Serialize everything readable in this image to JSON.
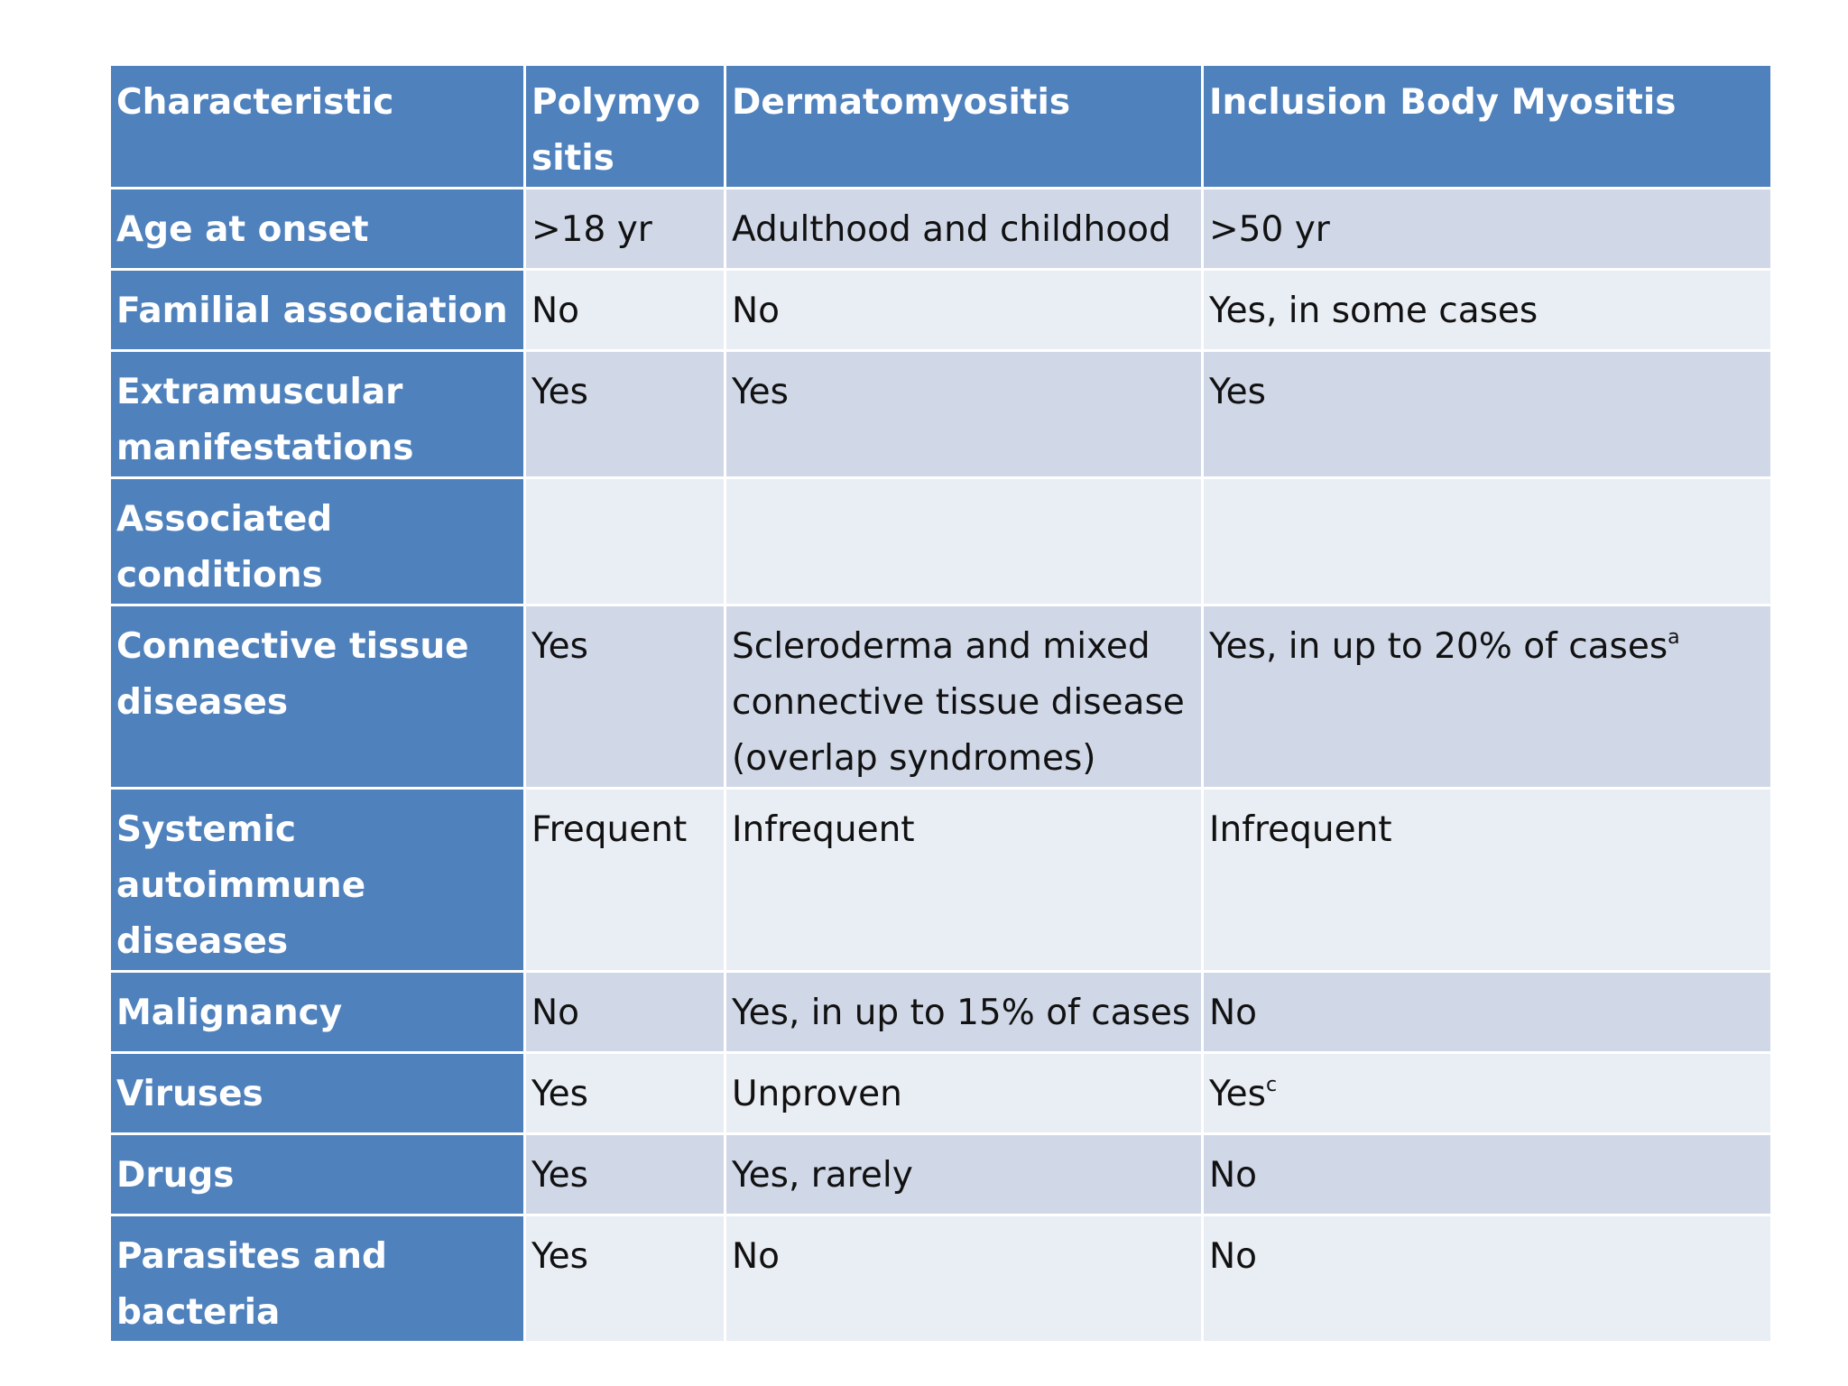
{
  "table": {
    "headers": [
      "Characteristic",
      "Polymyositis",
      "Dermatomyositis",
      "Inclusion Body Myositis"
    ],
    "rows": [
      {
        "label": "Age at onset",
        "cells": [
          ">18 yr",
          "Adulthood and childhood",
          ">50 yr"
        ]
      },
      {
        "label": "Familial association",
        "cells": [
          "No",
          "No",
          "Yes, in some cases"
        ]
      },
      {
        "label": "Extramuscular manifestations",
        "cells": [
          "Yes",
          "Yes",
          "Yes"
        ]
      },
      {
        "label": "Associated conditions",
        "cells": [
          "",
          "",
          ""
        ]
      },
      {
        "label": "Connective tissue diseases",
        "cells": [
          "Yes",
          "Scleroderma and mixed connective tissue disease (overlap syndromes)",
          "Yes, in up to 20% of cases"
        ],
        "notes": [
          "",
          "",
          "a"
        ]
      },
      {
        "label": "Systemic autoimmune diseases",
        "cells": [
          "Frequent",
          "Infrequent",
          "Infrequent"
        ]
      },
      {
        "label": "Malignancy",
        "cells": [
          "No",
          "Yes, in up to 15% of cases",
          "No"
        ]
      },
      {
        "label": "Viruses",
        "cells": [
          "Yes",
          "Unproven",
          "Yes"
        ],
        "notes": [
          "",
          "",
          "c"
        ]
      },
      {
        "label": "Drugs",
        "cells": [
          "Yes",
          "Yes, rarely",
          "No"
        ]
      },
      {
        "label": "Parasites and bacteria",
        "cells": [
          "Yes",
          "No",
          "No"
        ]
      }
    ]
  },
  "colors": {
    "header_fill": "#4f81bd",
    "row_odd_fill": "#d0d8e8",
    "row_even_fill": "#e9edf4",
    "header_text": "#ffffff",
    "body_text": "#111111"
  }
}
